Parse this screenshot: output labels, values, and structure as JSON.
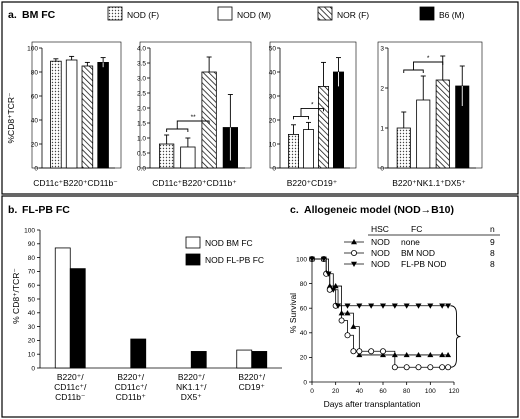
{
  "chart_data": [
    {
      "type": "bar",
      "panel": "a.",
      "title": "BM FC",
      "legend_items": [
        {
          "name": "NOD (F)",
          "fill": "dots"
        },
        {
          "name": "NOD (M)",
          "fill": "white"
        },
        {
          "name": "NOR (F)",
          "fill": "hatch"
        },
        {
          "name": "B6 (M)",
          "fill": "black"
        }
      ],
      "ylabel": "%CD8⁺TCR⁻",
      "subplots": [
        {
          "category": "CD11c⁺B220⁺CD11b⁻",
          "ylim": [
            0,
            100
          ],
          "yticks": [
            "0",
            "20",
            "40",
            "60",
            "80",
            "100"
          ],
          "values": [
            89,
            90,
            85,
            88
          ],
          "errors": [
            2,
            3,
            3,
            4
          ],
          "significance": ""
        },
        {
          "category": "CD11c⁺B220⁺CD11b⁺",
          "ylim": [
            0,
            4
          ],
          "yticks": [
            "0.0",
            "0.5",
            "1.0",
            "1.5",
            "2.0",
            "2.5",
            "3.0",
            "3.5",
            "4.0"
          ],
          "values": [
            0.8,
            0.7,
            3.2,
            1.35
          ],
          "errors": [
            0.3,
            0.3,
            0.5,
            1.1
          ],
          "significance": "**"
        },
        {
          "category": "B220⁺CD19⁺",
          "ylim": [
            0,
            50
          ],
          "yticks": [
            "0",
            "10",
            "20",
            "30",
            "40",
            "50"
          ],
          "values": [
            14,
            16,
            34,
            40
          ],
          "errors": [
            4,
            3,
            10,
            6
          ],
          "significance": "*"
        },
        {
          "category": "B220⁺NK1.1⁺DX5⁺",
          "ylim": [
            0,
            3
          ],
          "yticks": [
            "0",
            "1",
            "2",
            "3"
          ],
          "values": [
            1.0,
            1.7,
            2.2,
            2.05
          ],
          "errors": [
            0.4,
            0.6,
            0.6,
            0.5
          ],
          "significance": "*"
        }
      ]
    },
    {
      "type": "bar",
      "panel": "b.",
      "title": "FL-PB FC",
      "ylabel": "% CD8⁺/TCR⁻",
      "ylim": [
        0,
        100
      ],
      "yticks": [
        "0",
        "10",
        "20",
        "30",
        "40",
        "50",
        "60",
        "70",
        "80",
        "90",
        "100"
      ],
      "categories": [
        [
          "B220⁺/",
          "CD11c⁺/",
          "CD11b⁻"
        ],
        [
          "B220⁺/",
          "CD11c⁺/",
          "CD11b⁺"
        ],
        [
          "B220⁺/",
          "NK1.1⁺/",
          "DX5⁺"
        ],
        [
          "B220⁺/",
          "CD19⁺"
        ]
      ],
      "series": [
        {
          "name": "NOD BM FC",
          "color": "#ffffff",
          "values": [
            87,
            0,
            0,
            13
          ]
        },
        {
          "name": "NOD FL-PB FC",
          "color": "#000000",
          "values": [
            72,
            21,
            12,
            12
          ]
        }
      ]
    },
    {
      "type": "line",
      "panel": "c.",
      "title": "Allogeneic model (NOD→B10)",
      "xlabel": "Days after transplantation",
      "ylabel": "% Survival",
      "xlim": [
        0,
        120
      ],
      "ylim": [
        0,
        100
      ],
      "xticks": [
        "0",
        "20",
        "40",
        "60",
        "80",
        "100",
        "120"
      ],
      "yticks": [
        "0",
        "20",
        "40",
        "60",
        "80",
        "100"
      ],
      "legend_headers": [
        "HSC",
        "FC",
        "n"
      ],
      "series": [
        {
          "hsc": "NOD",
          "fc": "none",
          "n": "9",
          "marker": "triangle-up",
          "points": [
            [
              0,
              100
            ],
            [
              10,
              100
            ],
            [
              12,
              89
            ],
            [
              15,
              78
            ],
            [
              20,
              78
            ],
            [
              25,
              56
            ],
            [
              30,
              56
            ],
            [
              35,
              45
            ],
            [
              40,
              22
            ],
            [
              60,
              22
            ],
            [
              70,
              22
            ],
            [
              80,
              22
            ],
            [
              90,
              22
            ],
            [
              100,
              22
            ],
            [
              110,
              22
            ],
            [
              115,
              22
            ]
          ]
        },
        {
          "hsc": "NOD",
          "fc": "BM NOD",
          "n": "8",
          "marker": "circle",
          "points": [
            [
              0,
              100
            ],
            [
              10,
              100
            ],
            [
              12,
              88
            ],
            [
              15,
              75
            ],
            [
              20,
              62
            ],
            [
              25,
              50
            ],
            [
              30,
              38
            ],
            [
              35,
              25
            ],
            [
              40,
              25
            ],
            [
              50,
              25
            ],
            [
              60,
              25
            ],
            [
              70,
              12
            ],
            [
              80,
              12
            ],
            [
              90,
              12
            ],
            [
              100,
              12
            ],
            [
              110,
              12
            ],
            [
              115,
              12
            ]
          ]
        },
        {
          "hsc": "NOD",
          "fc": "FL-PB NOD",
          "n": "8",
          "marker": "triangle-down",
          "points": [
            [
              0,
              100
            ],
            [
              10,
              100
            ],
            [
              14,
              88
            ],
            [
              18,
              75
            ],
            [
              22,
              62
            ],
            [
              30,
              62
            ],
            [
              40,
              62
            ],
            [
              50,
              62
            ],
            [
              60,
              62
            ],
            [
              70,
              62
            ],
            [
              80,
              62
            ],
            [
              90,
              62
            ],
            [
              100,
              62
            ],
            [
              110,
              62
            ],
            [
              115,
              62
            ]
          ]
        }
      ]
    }
  ]
}
